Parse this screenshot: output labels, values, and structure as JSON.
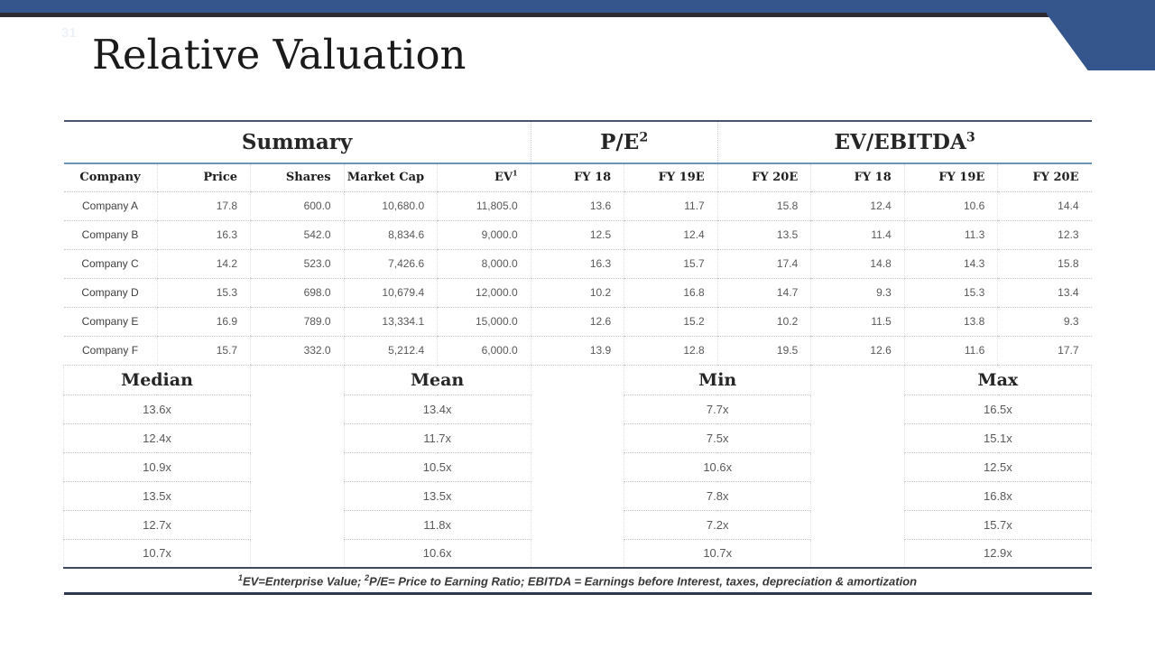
{
  "slide": {
    "page_number": "31",
    "title": "Relative Valuation"
  },
  "colors": {
    "accent_blue": "#35568D",
    "steel_blue_rule": "#6B94B9",
    "dark_navy_rule": "#2E3A50",
    "dark_top_line": "#2B2B31"
  },
  "table": {
    "section_headers": [
      {
        "label": "Summary",
        "sup": ""
      },
      {
        "label": "P/E",
        "sup": "2"
      },
      {
        "label": "EV/EBITDA",
        "sup": "3"
      }
    ],
    "column_headers": [
      {
        "label": "Company",
        "sup": ""
      },
      {
        "label": "Price",
        "sup": ""
      },
      {
        "label": "Shares",
        "sup": ""
      },
      {
        "label": "Market Cap",
        "sup": ""
      },
      {
        "label": "EV",
        "sup": "1"
      },
      {
        "label": "FY 18",
        "sup": ""
      },
      {
        "label": "FY 19E",
        "sup": ""
      },
      {
        "label": "FY 20E",
        "sup": ""
      },
      {
        "label": "FY 18",
        "sup": ""
      },
      {
        "label": "FY 19E",
        "sup": ""
      },
      {
        "label": "FY 20E",
        "sup": ""
      }
    ],
    "rows": [
      {
        "company": "Company A",
        "values": [
          "17.8",
          "600.0",
          "10,680.0",
          "11,805.0",
          "13.6",
          "11.7",
          "15.8",
          "12.4",
          "10.6",
          "14.4"
        ]
      },
      {
        "company": "Company B",
        "values": [
          "16.3",
          "542.0",
          "8,834.6",
          "9,000.0",
          "12.5",
          "12.4",
          "13.5",
          "11.4",
          "11.3",
          "12.3"
        ]
      },
      {
        "company": "Company C",
        "values": [
          "14.2",
          "523.0",
          "7,426.6",
          "8,000.0",
          "16.3",
          "15.7",
          "17.4",
          "14.8",
          "14.3",
          "15.8"
        ]
      },
      {
        "company": "Company D",
        "values": [
          "15.3",
          "698.0",
          "10,679.4",
          "12,000.0",
          "10.2",
          "16.8",
          "14.7",
          "9.3",
          "15.3",
          "13.4"
        ]
      },
      {
        "company": "Company E",
        "values": [
          "16.9",
          "789.0",
          "13,334.1",
          "15,000.0",
          "12.6",
          "15.2",
          "10.2",
          "11.5",
          "13.8",
          "9.3"
        ]
      },
      {
        "company": "Company F",
        "values": [
          "15.7",
          "332.0",
          "5,212.4",
          "6,000.0",
          "13.9",
          "12.8",
          "19.5",
          "12.6",
          "11.6",
          "17.7"
        ]
      }
    ]
  },
  "stats": {
    "headers": [
      "Median",
      "Mean",
      "Min",
      "Max"
    ],
    "rows": [
      [
        "13.6x",
        "13.4x",
        "7.7x",
        "16.5x"
      ],
      [
        "12.4x",
        "11.7x",
        "7.5x",
        "15.1x"
      ],
      [
        "10.9x",
        "10.5x",
        "10.6x",
        "12.5x"
      ],
      [
        "13.5x",
        "13.5x",
        "7.8x",
        "16.8x"
      ],
      [
        "12.7x",
        "11.8x",
        "7.2x",
        "15.7x"
      ],
      [
        "10.7x",
        "10.6x",
        "10.7x",
        "12.9x"
      ]
    ]
  },
  "footnote": {
    "sup1": "1",
    "part1": "EV=Enterprise Value; ",
    "sup2": "2",
    "part2": "P/E= Price to Earning Ratio; EBITDA = Earnings before Interest, taxes, depreciation  & amortization"
  }
}
